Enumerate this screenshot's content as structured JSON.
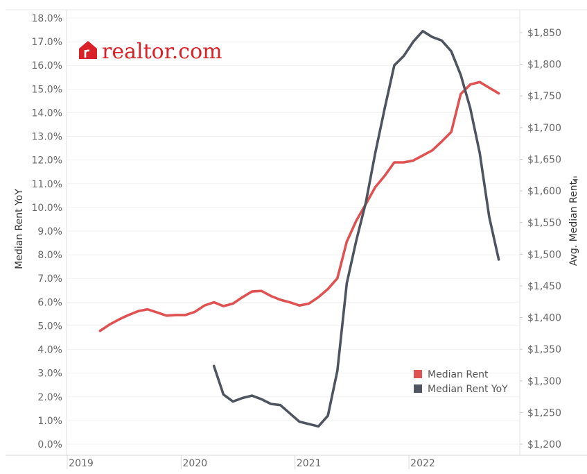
{
  "logo": {
    "text_a": "real",
    "text_b": "tor.com",
    "color": "#d92228"
  },
  "chart_data": {
    "type": "line",
    "y_left_label": "Median Rent YoY",
    "y_right_label": "Avg. Median Rent",
    "y_right_sort_icon": "sort-descending-icon",
    "y_left_ticks": [
      "18.0%",
      "17.0%",
      "16.0%",
      "15.0%",
      "14.0%",
      "13.0%",
      "12.0%",
      "11.0%",
      "10.0%",
      "9.0%",
      "8.0%",
      "7.0%",
      "6.0%",
      "5.0%",
      "4.0%",
      "3.0%",
      "2.0%",
      "1.0%",
      "0.0%"
    ],
    "y_left_range": [
      0.0,
      18.0
    ],
    "y_right_ticks": [
      "$1,850",
      "$1,800",
      "$1,750",
      "$1,700",
      "$1,650",
      "$1,600",
      "$1,550",
      "$1,500",
      "$1,450",
      "$1,400",
      "$1,350",
      "$1,300",
      "$1,250",
      "$1,200"
    ],
    "y_right_range": [
      1200,
      1875
    ],
    "x_ticks": [
      "2019",
      "2020",
      "2021",
      "2022"
    ],
    "x_range": [
      "2019-01",
      "2022-11"
    ],
    "legend": [
      {
        "name": "Median Rent",
        "color": "#e05252"
      },
      {
        "name": "Median Rent YoY",
        "color": "#4f5560"
      }
    ],
    "series": [
      {
        "name": "Median Rent",
        "axis": "right",
        "color": "#e05252",
        "points": [
          [
            "2019-03",
            1379
          ],
          [
            "2019-04",
            1389
          ],
          [
            "2019-05",
            1397
          ],
          [
            "2019-06",
            1404
          ],
          [
            "2019-07",
            1410
          ],
          [
            "2019-08",
            1413
          ],
          [
            "2019-09",
            1408
          ],
          [
            "2019-10",
            1403
          ],
          [
            "2019-11",
            1404
          ],
          [
            "2019-12",
            1404
          ],
          [
            "2020-01",
            1409
          ],
          [
            "2020-02",
            1419
          ],
          [
            "2020-03",
            1424
          ],
          [
            "2020-04",
            1418
          ],
          [
            "2020-05",
            1422
          ],
          [
            "2020-06",
            1432
          ],
          [
            "2020-07",
            1441
          ],
          [
            "2020-08",
            1442
          ],
          [
            "2020-09",
            1434
          ],
          [
            "2020-10",
            1428
          ],
          [
            "2020-11",
            1424
          ],
          [
            "2020-12",
            1419
          ],
          [
            "2021-01",
            1422
          ],
          [
            "2021-02",
            1432
          ],
          [
            "2021-03",
            1445
          ],
          [
            "2021-04",
            1462
          ],
          [
            "2021-05",
            1520
          ],
          [
            "2021-06",
            1553
          ],
          [
            "2021-07",
            1579
          ],
          [
            "2021-08",
            1606
          ],
          [
            "2021-09",
            1624
          ],
          [
            "2021-10",
            1645
          ],
          [
            "2021-11",
            1645
          ],
          [
            "2021-12",
            1648
          ],
          [
            "2022-01",
            1656
          ],
          [
            "2022-02",
            1664
          ],
          [
            "2022-03",
            1678
          ],
          [
            "2022-04",
            1693
          ],
          [
            "2022-05",
            1753
          ],
          [
            "2022-06",
            1768
          ],
          [
            "2022-07",
            1772
          ],
          [
            "2022-08",
            1763
          ],
          [
            "2022-09",
            1754
          ]
        ]
      },
      {
        "name": "Median Rent YoY",
        "axis": "left",
        "color": "#4f5560",
        "points": [
          [
            "2020-03",
            3.3
          ],
          [
            "2020-04",
            2.1
          ],
          [
            "2020-05",
            1.8
          ],
          [
            "2020-06",
            1.95
          ],
          [
            "2020-07",
            2.05
          ],
          [
            "2020-08",
            1.9
          ],
          [
            "2020-09",
            1.7
          ],
          [
            "2020-10",
            1.65
          ],
          [
            "2020-11",
            1.3
          ],
          [
            "2020-12",
            0.95
          ],
          [
            "2021-01",
            0.85
          ],
          [
            "2021-02",
            0.75
          ],
          [
            "2021-03",
            1.2
          ],
          [
            "2021-04",
            3.1
          ],
          [
            "2021-05",
            6.8
          ],
          [
            "2021-06",
            8.6
          ],
          [
            "2021-07",
            10.2
          ],
          [
            "2021-08",
            12.3
          ],
          [
            "2021-09",
            14.2
          ],
          [
            "2021-10",
            16.0
          ],
          [
            "2021-11",
            16.4
          ],
          [
            "2021-12",
            17.0
          ],
          [
            "2022-01",
            17.45
          ],
          [
            "2022-02",
            17.2
          ],
          [
            "2022-03",
            17.05
          ],
          [
            "2022-04",
            16.6
          ],
          [
            "2022-05",
            15.6
          ],
          [
            "2022-06",
            14.2
          ],
          [
            "2022-07",
            12.3
          ],
          [
            "2022-08",
            9.6
          ],
          [
            "2022-09",
            7.8
          ]
        ]
      }
    ],
    "grid": true
  }
}
